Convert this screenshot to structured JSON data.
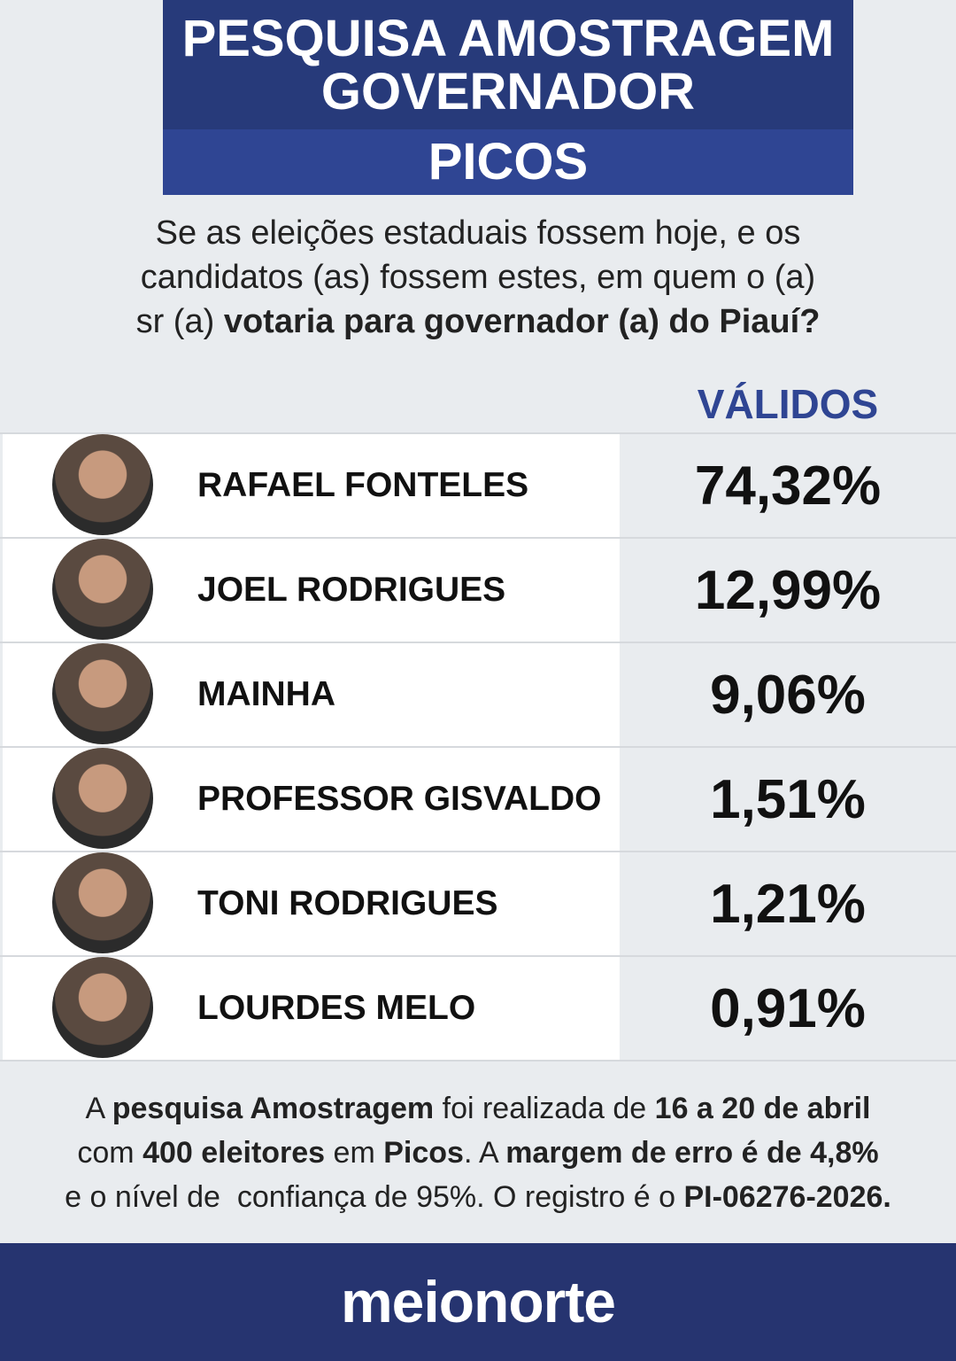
{
  "header": {
    "title_lines": [
      "PESQUISA AMOSTRAGEM",
      "GOVERNADOR"
    ],
    "city": "PICOS"
  },
  "question": [
    [
      {
        "text": "Se as eleições estaduais fossem hoje, e os",
        "bold": false
      }
    ],
    [
      {
        "text": "candidatos (as) fossem estes, em quem o (a)",
        "bold": false
      }
    ],
    [
      {
        "text": "sr (a) ",
        "bold": false
      },
      {
        "text": "votaria para governador (a) do Piauí?",
        "bold": true
      }
    ]
  ],
  "column_header": "VÁLIDOS",
  "table": {
    "rows": [
      [
        "RAFAEL FONTELES",
        "74,32%"
      ],
      [
        "JOEL RODRIGUES",
        "12,99%"
      ],
      [
        "MAINHA",
        "9,06%"
      ],
      [
        "PROFESSOR GISVALDO",
        "1,51%"
      ],
      [
        "TONI RODRIGUES",
        "1,21%"
      ],
      [
        "LOURDES MELO",
        "0,91%"
      ]
    ]
  },
  "footnote": [
    [
      {
        "text": "A ",
        "bold": false
      },
      {
        "text": "pesquisa Amostragem",
        "bold": true
      },
      {
        "text": " foi realizada de ",
        "bold": false
      },
      {
        "text": "16 a 20 de abril",
        "bold": true
      }
    ],
    [
      {
        "text": "com ",
        "bold": false
      },
      {
        "text": "400 eleitores",
        "bold": true
      },
      {
        "text": " em ",
        "bold": false
      },
      {
        "text": "Picos",
        "bold": true
      },
      {
        "text": ". A ",
        "bold": false
      },
      {
        "text": "margem de erro é de 4,8%",
        "bold": true
      }
    ],
    [
      {
        "text": "e o nível de  confiança de 95%. O registro é o ",
        "bold": false
      },
      {
        "text": "PI-06276-2026.",
        "bold": true
      }
    ]
  ],
  "brand": "meionorte"
}
